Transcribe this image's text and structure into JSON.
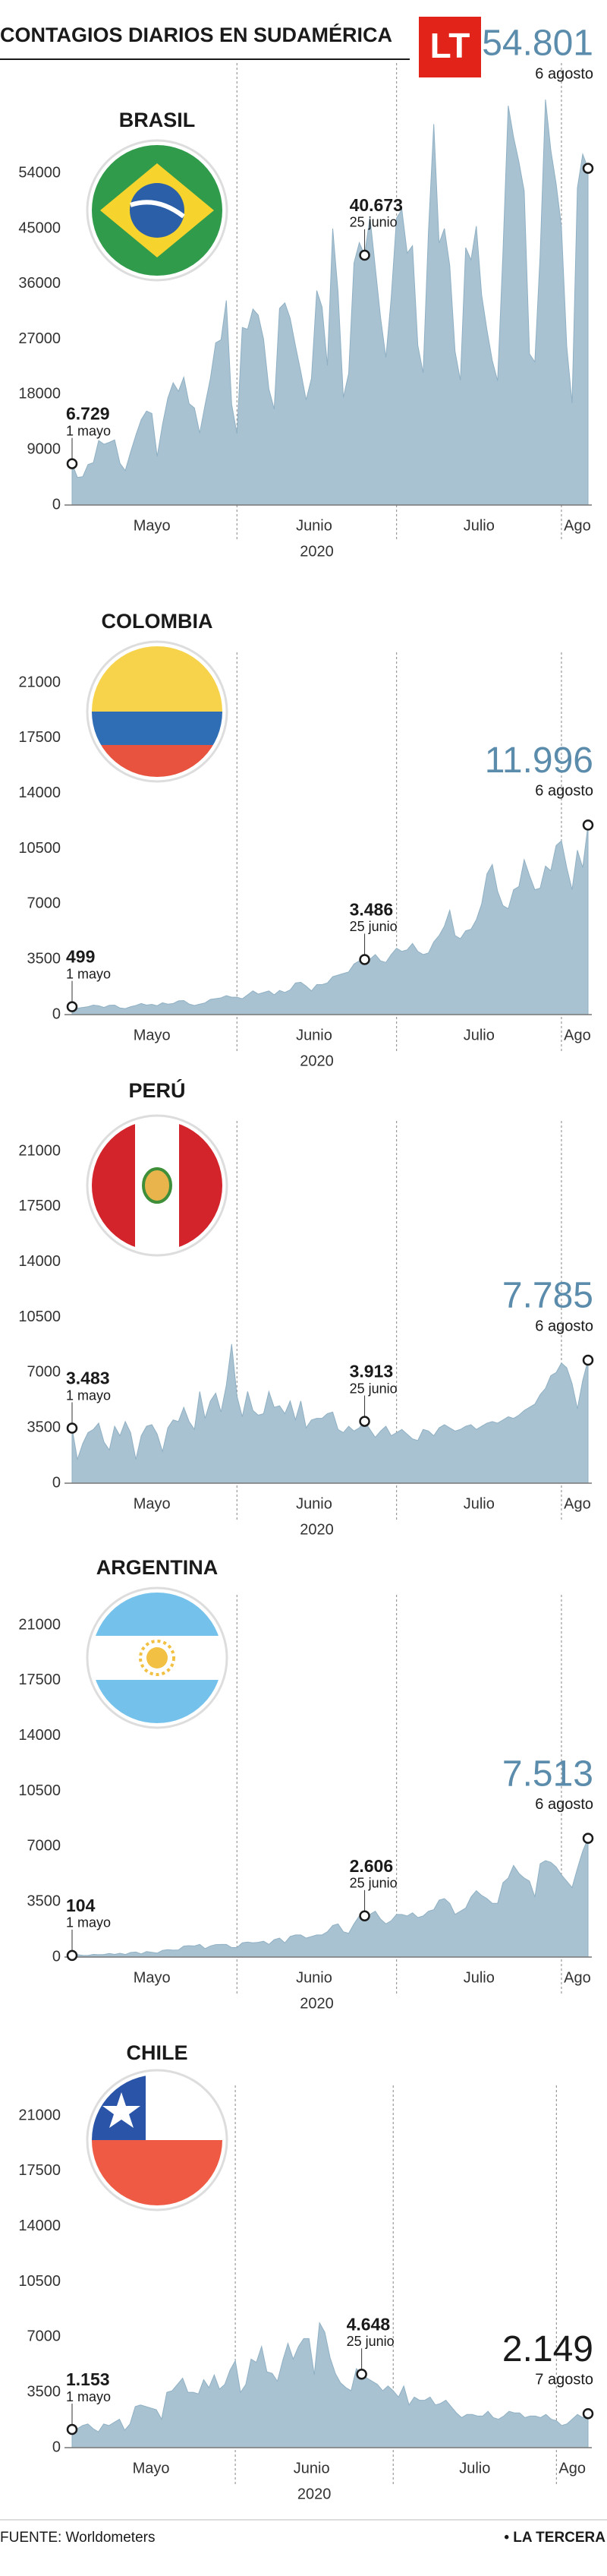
{
  "header": {
    "title": "CONTAGIOS DIARIOS EN SUDAMÉRICA",
    "logo": "LT"
  },
  "chart_data": [
    {
      "type": "area",
      "title": "BRASIL",
      "color": "#a9c2d1",
      "highlight_color": "#5b8cab",
      "ylim": [
        0,
        67000
      ],
      "yticks": [
        0,
        9000,
        18000,
        27000,
        36000,
        45000,
        54000
      ],
      "x_labels": [
        "Mayo",
        "Junio",
        "Julio",
        "Ago"
      ],
      "x_title": "2020",
      "values": [
        6729,
        4500,
        4600,
        6600,
        6900,
        10500,
        9900,
        10200,
        10600,
        6800,
        5600,
        8600,
        11400,
        13900,
        15300,
        14900,
        7900,
        13100,
        17400,
        19900,
        18500,
        20800,
        16500,
        15800,
        11700,
        16300,
        20600,
        26400,
        26900,
        33300,
        16400,
        11600,
        28900,
        28600,
        31900,
        30900,
        27000,
        18900,
        15600,
        32000,
        32900,
        30400,
        25900,
        21700,
        17100,
        20600,
        34900,
        32200,
        22700,
        45000,
        34700,
        17500,
        21400,
        39400,
        42700,
        40673,
        46900,
        38700,
        30500,
        24000,
        33800,
        46700,
        48100,
        41000,
        42200,
        26000,
        21500,
        44500,
        62000,
        42600,
        45000,
        39000,
        25000,
        20300,
        41900,
        39900,
        45400,
        34200,
        28500,
        23500,
        20200,
        41000,
        65000,
        59900,
        55900,
        51100,
        24600,
        23300,
        40800,
        66000,
        57800,
        52300,
        45300,
        25800,
        16600,
        51600,
        57100,
        54801
      ],
      "annotations": [
        {
          "label": "6.729",
          "date": "1 mayo",
          "value": 6729
        },
        {
          "label": "40.673",
          "date": "25 junio",
          "value": 40673
        },
        {
          "label": "54.801",
          "date": "6 agosto",
          "value": 54801
        }
      ]
    },
    {
      "type": "area",
      "title": "COLOMBIA",
      "color": "#a9c2d1",
      "highlight_color": "#5b8cab",
      "ylim": [
        0,
        21000
      ],
      "yticks": [
        0,
        3500,
        7000,
        10500,
        14000,
        17500,
        21000
      ],
      "x_labels": [
        "Mayo",
        "Junio",
        "Julio",
        "Ago"
      ],
      "x_title": "2020",
      "values": [
        499,
        400,
        450,
        500,
        600,
        560,
        450,
        590,
        600,
        420,
        380,
        500,
        580,
        700,
        600,
        650,
        560,
        750,
        660,
        700,
        870,
        890,
        670,
        580,
        660,
        740,
        960,
        1010,
        1060,
        1200,
        1100,
        1100,
        1000,
        1250,
        1500,
        1300,
        1400,
        1500,
        1250,
        1530,
        1400,
        1560,
        2000,
        2050,
        1800,
        1500,
        1900,
        1900,
        2000,
        2400,
        2500,
        2600,
        2700,
        3200,
        3400,
        3486,
        3500,
        3800,
        3400,
        3300,
        3800,
        4200,
        4000,
        4100,
        4500,
        4000,
        3800,
        3900,
        4600,
        5000,
        5600,
        6600,
        5000,
        4800,
        5300,
        5400,
        6000,
        7000,
        8900,
        9500,
        7800,
        6900,
        6700,
        7900,
        8100,
        9800,
        8800,
        7900,
        8000,
        9400,
        9100,
        10700,
        11000,
        9300,
        7900,
        10400,
        9300,
        11996
      ],
      "annotations": [
        {
          "label": "499",
          "date": "1 mayo",
          "value": 499
        },
        {
          "label": "3.486",
          "date": "25 junio",
          "value": 3486
        },
        {
          "label": "11.996",
          "date": "6 agosto",
          "value": 11996
        }
      ]
    },
    {
      "type": "area",
      "title": "PERÚ",
      "color": "#a9c2d1",
      "highlight_color": "#5b8cab",
      "ylim": [
        0,
        21000
      ],
      "yticks": [
        0,
        3500,
        7000,
        10500,
        14000,
        17500,
        21000
      ],
      "x_labels": [
        "Mayo",
        "Junio",
        "Julio",
        "Ago"
      ],
      "x_title": "2020",
      "values": [
        3483,
        1500,
        2500,
        3200,
        3400,
        3800,
        2600,
        2100,
        3600,
        3000,
        3900,
        3200,
        1500,
        3000,
        3600,
        3700,
        3100,
        2000,
        3500,
        4000,
        3900,
        4800,
        3900,
        3400,
        5800,
        4100,
        5200,
        5700,
        4500,
        6200,
        8800,
        5500,
        4200,
        5800,
        4600,
        4300,
        4400,
        5800,
        4800,
        4900,
        4400,
        5200,
        4000,
        5200,
        3500,
        4000,
        4100,
        4100,
        4400,
        4500,
        3400,
        3200,
        3600,
        3300,
        3500,
        3913,
        3400,
        2900,
        3300,
        3600,
        3000,
        3200,
        3400,
        3100,
        2800,
        2700,
        3400,
        3300,
        3000,
        3500,
        3700,
        3500,
        3300,
        3400,
        3600,
        3700,
        3400,
        3600,
        3800,
        3900,
        3800,
        4000,
        4200,
        4100,
        4300,
        4600,
        4800,
        5000,
        5600,
        6000,
        6800,
        7000,
        7600,
        7300,
        6300,
        4700,
        6500,
        7785
      ],
      "annotations": [
        {
          "label": "3.483",
          "date": "1 mayo",
          "value": 3483
        },
        {
          "label": "3.913",
          "date": "25 junio",
          "value": 3913
        },
        {
          "label": "7.785",
          "date": "6 agosto",
          "value": 7785
        }
      ]
    },
    {
      "type": "area",
      "title": "ARGENTINA",
      "color": "#a9c2d1",
      "highlight_color": "#5b8cab",
      "ylim": [
        0,
        21000
      ],
      "yticks": [
        0,
        3500,
        7000,
        10500,
        14000,
        17500,
        21000
      ],
      "x_labels": [
        "Mayo",
        "Junio",
        "Julio",
        "Ago"
      ],
      "x_title": "2020",
      "values": [
        104,
        150,
        110,
        100,
        170,
        150,
        160,
        230,
        170,
        240,
        160,
        290,
        320,
        200,
        350,
        300,
        250,
        420,
        470,
        440,
        450,
        700,
        720,
        700,
        800,
        530,
        700,
        790,
        800,
        800,
        600,
        600,
        900,
        950,
        900,
        930,
        1000,
        800,
        1100,
        1200,
        900,
        1300,
        1400,
        1400,
        1200,
        1300,
        1400,
        1400,
        1600,
        2000,
        2100,
        1600,
        1500,
        2100,
        2600,
        2606,
        2700,
        2900,
        2400,
        2100,
        2300,
        2700,
        2700,
        2600,
        2800,
        2500,
        2600,
        2900,
        3000,
        3600,
        3700,
        3400,
        2700,
        2900,
        3100,
        3800,
        4200,
        3900,
        3700,
        3400,
        3400,
        4700,
        5000,
        5800,
        5300,
        5000,
        4800,
        3800,
        5900,
        6100,
        6000,
        5700,
        5200,
        4800,
        4400,
        5600,
        6700,
        7513
      ],
      "annotations": [
        {
          "label": "104",
          "date": "1 mayo",
          "value": 104
        },
        {
          "label": "2.606",
          "date": "25 junio",
          "value": 2606
        },
        {
          "label": "7.513",
          "date": "6 agosto",
          "value": 7513
        }
      ]
    },
    {
      "type": "area",
      "title": "CHILE",
      "color": "#a9c2d1",
      "highlight_color": "#1a1a1a",
      "ylim": [
        0,
        21000
      ],
      "yticks": [
        0,
        3500,
        7000,
        10500,
        14000,
        17500,
        21000
      ],
      "x_labels": [
        "Mayo",
        "Junio",
        "Julio",
        "Ago"
      ],
      "x_title": "2020",
      "values": [
        1153,
        1200,
        1400,
        1500,
        1200,
        1000,
        1500,
        1400,
        1600,
        1800,
        1100,
        1500,
        2600,
        2700,
        2600,
        2500,
        2400,
        1800,
        3500,
        3600,
        4000,
        4400,
        3500,
        3500,
        3400,
        4300,
        3800,
        4600,
        3700,
        4000,
        4900,
        5500,
        3500,
        4000,
        5600,
        5400,
        6400,
        4800,
        4700,
        4200,
        5500,
        6600,
        5600,
        6400,
        6900,
        6900,
        4600,
        7900,
        7300,
        5700,
        4700,
        4100,
        3800,
        3600,
        5000,
        4648,
        4400,
        4200,
        4000,
        3600,
        3900,
        3600,
        3200,
        3900,
        2700,
        3200,
        3000,
        3000,
        3200,
        2700,
        2800,
        3000,
        2600,
        2200,
        1900,
        2100,
        2100,
        2000,
        2000,
        2300,
        1900,
        1800,
        2000,
        2300,
        2200,
        2200,
        1900,
        2000,
        2000,
        1900,
        2100,
        1800,
        1700,
        1400,
        1500,
        1800,
        2100,
        1900,
        2149
      ],
      "annotations": [
        {
          "label": "1.153",
          "date": "1 mayo",
          "value": 1153
        },
        {
          "label": "4.648",
          "date": "25 junio",
          "value": 4648
        },
        {
          "label": "2.149",
          "date": "7 agosto",
          "value": 2149
        }
      ]
    }
  ],
  "footer": {
    "source": "FUENTE: Worldometers",
    "brand": "• LA TERCERA"
  }
}
